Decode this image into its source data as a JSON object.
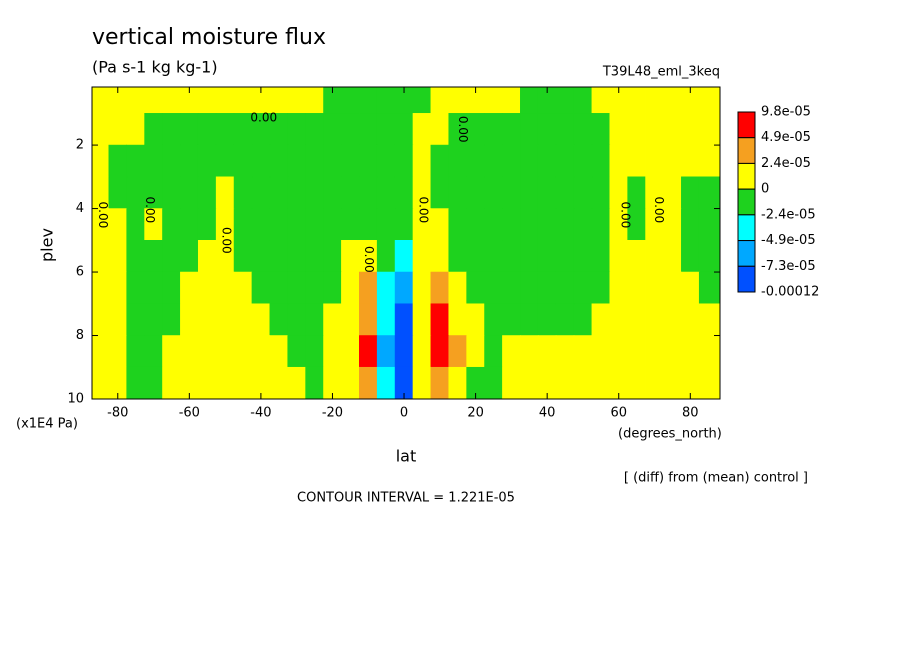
{
  "chart_data": {
    "type": "contour",
    "title": "vertical moisture flux",
    "subtitle": "(Pa s-1 kg kg-1)",
    "run_label": "T39L48_eml_3keq",
    "xlabel": "lat",
    "xunits": "(degrees_north)",
    "ylabel": "plev",
    "yunits": "(x1E4 Pa)",
    "note": "[ (diff) from (mean) control ]",
    "contour_interval": "CONTOUR INTERVAL = 1.221E-05",
    "xlim": [
      -87.2,
      88.3
    ],
    "ylim": [
      0.17,
      10
    ],
    "y_reversed": true,
    "xticks": [
      -80,
      -60,
      -40,
      -20,
      0,
      20,
      40,
      60,
      80
    ],
    "yticks": [
      2,
      4,
      6,
      8,
      10
    ],
    "x": [
      -85,
      -80,
      -75,
      -70,
      -65,
      -60,
      -55,
      -50,
      -45,
      -40,
      -35,
      -30,
      -25,
      -20,
      -15,
      -10,
      -5,
      0,
      5,
      10,
      15,
      20,
      25,
      30,
      35,
      40,
      45,
      50,
      55,
      60,
      65,
      70,
      75,
      80,
      85
    ],
    "y": [
      0.5,
      1.5,
      2.5,
      3.5,
      4.5,
      5.5,
      6.5,
      7.5,
      8.5,
      9.5
    ],
    "z": [
      [
        1e-05,
        1e-05,
        1e-05,
        1e-05,
        1e-05,
        1e-05,
        1e-05,
        1e-05,
        1e-05,
        1e-05,
        1e-05,
        1e-05,
        1e-05,
        -1e-05,
        -1e-05,
        -1e-05,
        -1e-05,
        -1e-05,
        -1e-05,
        1e-05,
        1e-05,
        1e-05,
        1e-05,
        1e-05,
        -1e-05,
        -1e-05,
        -1e-05,
        -1e-05,
        1e-05,
        1e-05,
        1e-05,
        1e-05,
        1e-05,
        1e-05,
        1e-05
      ],
      [
        1e-05,
        1e-05,
        1e-05,
        -1e-05,
        -1e-05,
        -1e-05,
        -1e-05,
        -1e-05,
        -1e-05,
        -1e-05,
        -1e-05,
        -1e-05,
        -1e-05,
        -1e-05,
        -1e-05,
        -1e-05,
        -1e-05,
        -1e-05,
        1e-05,
        1e-05,
        -1e-05,
        -1e-05,
        -1e-05,
        -1e-05,
        -1e-05,
        -1e-05,
        -1e-05,
        -1e-05,
        -1e-05,
        1e-05,
        1e-05,
        1e-05,
        1e-05,
        1e-05,
        1e-05
      ],
      [
        1e-05,
        -1e-05,
        -1e-05,
        -1e-05,
        -1e-05,
        -1e-05,
        -1e-05,
        -1e-05,
        -1e-05,
        -1e-05,
        -1e-05,
        -1e-05,
        -1e-05,
        -1e-05,
        -1e-05,
        -1e-05,
        -1e-05,
        -1e-05,
        1e-05,
        -1e-05,
        -1e-05,
        -1e-05,
        -1e-05,
        -1e-05,
        -1e-05,
        -1e-05,
        -1e-05,
        -1e-05,
        -1e-05,
        1e-05,
        1e-05,
        1e-05,
        1e-05,
        1e-05,
        1e-05
      ],
      [
        1e-05,
        -1e-05,
        -1e-05,
        -1e-05,
        -1e-05,
        -1e-05,
        -1e-05,
        1e-05,
        -1e-05,
        -1e-05,
        -1e-05,
        -1e-05,
        -1e-05,
        -1e-05,
        -1e-05,
        -1e-05,
        -1e-05,
        -1e-05,
        1e-05,
        -1e-05,
        -1e-05,
        -1e-05,
        -1e-05,
        -1e-05,
        -1e-05,
        -1e-05,
        -1e-05,
        -1e-05,
        -1e-05,
        1e-05,
        -1e-05,
        1e-05,
        1e-05,
        -1e-05,
        -1e-05
      ],
      [
        1e-05,
        1e-05,
        -1e-05,
        1e-05,
        -1e-05,
        -1e-05,
        -1e-05,
        1e-05,
        -1e-05,
        -1e-05,
        -1e-05,
        -1e-05,
        -1e-05,
        -1e-05,
        -1e-05,
        -1e-05,
        -1e-05,
        -1e-05,
        1e-05,
        1e-05,
        -1e-05,
        -1e-05,
        -1e-05,
        -1e-05,
        -1e-05,
        -1e-05,
        -1e-05,
        -1e-05,
        -1e-05,
        1e-05,
        -1e-05,
        1e-05,
        1e-05,
        -1e-05,
        -1e-05
      ],
      [
        1e-05,
        1e-05,
        -1e-05,
        -1e-05,
        -1e-05,
        -1e-05,
        1e-05,
        1e-05,
        -1e-05,
        -1e-05,
        -1e-05,
        -1e-05,
        -1e-05,
        -1e-05,
        1e-05,
        1e-05,
        -1e-05,
        -3.6e-05,
        1e-05,
        1e-05,
        -1e-05,
        -1e-05,
        -1e-05,
        -1e-05,
        -1e-05,
        -1e-05,
        -1e-05,
        -1e-05,
        -1e-05,
        1e-05,
        1e-05,
        1e-05,
        1e-05,
        -1e-05,
        -1e-05
      ],
      [
        1e-05,
        1e-05,
        -1e-05,
        -1e-05,
        -1e-05,
        1e-05,
        1e-05,
        1e-05,
        1e-05,
        -1e-05,
        -1e-05,
        -1e-05,
        -1e-05,
        -1e-05,
        1e-05,
        3.6e-05,
        -3.6e-05,
        -6e-05,
        1e-05,
        3.6e-05,
        1e-05,
        -1e-05,
        -1e-05,
        -1e-05,
        -1e-05,
        -1e-05,
        -1e-05,
        -1e-05,
        -1e-05,
        1e-05,
        1e-05,
        1e-05,
        1e-05,
        1e-05,
        -1e-05
      ],
      [
        1e-05,
        1e-05,
        -1e-05,
        -1e-05,
        -1e-05,
        1e-05,
        1e-05,
        1e-05,
        1e-05,
        1e-05,
        -1e-05,
        -1e-05,
        -1e-05,
        1e-05,
        1e-05,
        3.6e-05,
        -3.6e-05,
        -9e-05,
        1e-05,
        6e-05,
        1e-05,
        1e-05,
        -1e-05,
        -1e-05,
        -1e-05,
        -1e-05,
        -1e-05,
        -1e-05,
        1e-05,
        1e-05,
        1e-05,
        1e-05,
        1e-05,
        1e-05,
        1e-05
      ],
      [
        1e-05,
        1e-05,
        -1e-05,
        -1e-05,
        1e-05,
        1e-05,
        1e-05,
        1e-05,
        1e-05,
        1e-05,
        1e-05,
        -1e-05,
        -1e-05,
        1e-05,
        1e-05,
        6e-05,
        -6e-05,
        -9e-05,
        1e-05,
        6e-05,
        3.6e-05,
        1e-05,
        -1e-05,
        1e-05,
        1e-05,
        1e-05,
        1e-05,
        1e-05,
        1e-05,
        1e-05,
        1e-05,
        1e-05,
        1e-05,
        1e-05,
        1e-05
      ],
      [
        1e-05,
        1e-05,
        -1e-05,
        -1e-05,
        1e-05,
        1e-05,
        1e-05,
        1e-05,
        1e-05,
        1e-05,
        1e-05,
        1e-05,
        -1e-05,
        1e-05,
        1e-05,
        3.6e-05,
        -3.6e-05,
        -9e-05,
        1e-05,
        3.6e-05,
        1e-05,
        -1e-05,
        -1e-05,
        1e-05,
        1e-05,
        1e-05,
        1e-05,
        1e-05,
        1e-05,
        1e-05,
        1e-05,
        1e-05,
        1e-05,
        1e-05,
        1e-05
      ]
    ],
    "colorbar": {
      "levels": [
        {
          "value": 9.8e-05,
          "label": "9.8e-05"
        },
        {
          "value": 4.9e-05,
          "label": "4.9e-05"
        },
        {
          "value": 2.4e-05,
          "label": "2.4e-05"
        },
        0,
        {
          "value": -2.4e-05,
          "label": "-2.4e-05"
        },
        {
          "value": -4.9e-05,
          "label": "-4.9e-05"
        },
        {
          "value": -7.3e-05,
          "label": "-7.3e-05"
        },
        -0.00012
      ],
      "colors": [
        "#ff0000",
        "#f5a020",
        "#ffff00",
        "#1ed21e",
        "#00ffff",
        "#00a8ff",
        "#0050ff"
      ]
    },
    "contour_labels": [
      {
        "label": "0.00",
        "x": -39.2,
        "y": 1.15
      },
      {
        "label": "0.00",
        "x": -84.2,
        "y": 4.2
      },
      {
        "label": "0.00",
        "x": -71.1,
        "y": 4.04
      },
      {
        "label": "0.00",
        "x": -49.7,
        "y": 5.0
      },
      {
        "label": "0.00",
        "x": -10,
        "y": 5.6
      },
      {
        "label": "0.00",
        "x": 5.3,
        "y": 4.04
      },
      {
        "label": "0.00",
        "x": 16.4,
        "y": 1.5
      },
      {
        "label": "0.00",
        "x": 61.7,
        "y": 4.2
      },
      {
        "label": "0.00",
        "x": 71.1,
        "y": 4.04
      }
    ]
  }
}
